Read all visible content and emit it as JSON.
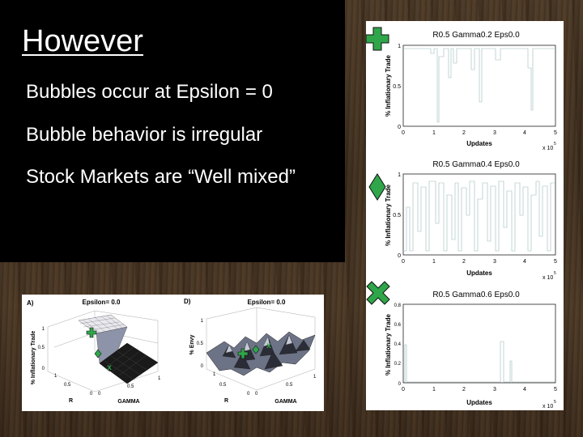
{
  "slide": {
    "title": "However",
    "bullets": [
      "Bubbles occur at Epsilon = 0",
      "Bubble behavior is irregular",
      "Stock Markets are “Well mixed”"
    ]
  },
  "colors": {
    "marker_green": "#2fa64a",
    "marker_outline": "#111111",
    "trace": "#9cb8b8"
  },
  "right_plots": {
    "xlabel": "Updates",
    "ylabel": "% Inflationary Trade",
    "x_ticks": [
      "0",
      "1",
      "2",
      "3",
      "4",
      "5"
    ],
    "exponent_base": "x 10",
    "exponent_power": "5",
    "markers": [
      "plus-icon",
      "diamond-icon",
      "x-icon"
    ],
    "plots": [
      {
        "title": "R0.5 Gamma0.2 Eps0.0",
        "y_ticks": [
          "1",
          "0.5",
          "0"
        ]
      },
      {
        "title": "R0.5 Gamma0.4 Eps0.0",
        "y_ticks": [
          "1",
          "0.5",
          "0"
        ]
      },
      {
        "title": "R0.5 Gamma0.6 Eps0.0",
        "y_ticks": [
          "0.8",
          "0.6",
          "0.4",
          "0.2",
          "0"
        ]
      }
    ]
  },
  "surface_plots": [
    {
      "panel_label": "A)",
      "title": "Epsilon= 0.0",
      "zlabel": "% Inflationary Trade",
      "z_ticks": [
        "1",
        "0.5",
        "0"
      ],
      "r_ticks": [
        "1",
        "0.5",
        "0"
      ],
      "gamma_ticks": [
        "0",
        "0.5",
        "1"
      ],
      "xlabel": "R",
      "ylabel": "GAMMA"
    },
    {
      "panel_label": "D)",
      "title": "Epsilon= 0.0",
      "zlabel": "% Envy",
      "z_ticks": [
        "1",
        "0.5",
        "0"
      ],
      "r_ticks": [
        "1",
        "0.5",
        "0"
      ],
      "gamma_ticks": [
        "0",
        "0.5",
        "1"
      ],
      "xlabel": "R",
      "ylabel": "GAMMA"
    }
  ]
}
